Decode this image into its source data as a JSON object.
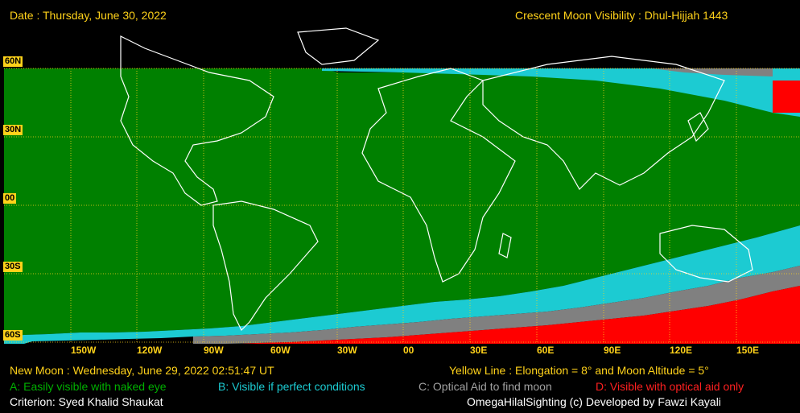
{
  "header": {
    "date": "Date : Thursday, June 30, 2022",
    "title": "Crescent Moon Visibility : Dhul-Hijjah  1443"
  },
  "lat_labels": [
    "60N",
    "30N",
    "00",
    "30S",
    "60S"
  ],
  "lon_labels": [
    "150W",
    "120W",
    "90W",
    "60W",
    "30W",
    "00",
    "30E",
    "60E",
    "90E",
    "120E",
    "150E"
  ],
  "footer": {
    "new_moon": "New Moon : Wednesday, June 29, 2022  02:51:47  UT",
    "yellow_line": "Yellow Line : Elongation = 8° and Moon Altitude = 5°",
    "legend_a": "A: Easily visible with naked eye",
    "legend_b": "B: Visible if perfect conditions",
    "legend_c": "C: Optical Aid to find moon",
    "legend_d": "D: Visible with optical aid only",
    "criterion": "Criterion: Syed Khalid Shaukat",
    "credit": "OmegaHilalSighting  (c)  Developed by Fawzi Kayali"
  },
  "colors": {
    "zone_a": "#008000",
    "zone_b": "#1ccbd2",
    "zone_c": "#808080",
    "zone_d": "#ff0000",
    "grid": "#ffd21a",
    "coast": "#ffffff"
  }
}
